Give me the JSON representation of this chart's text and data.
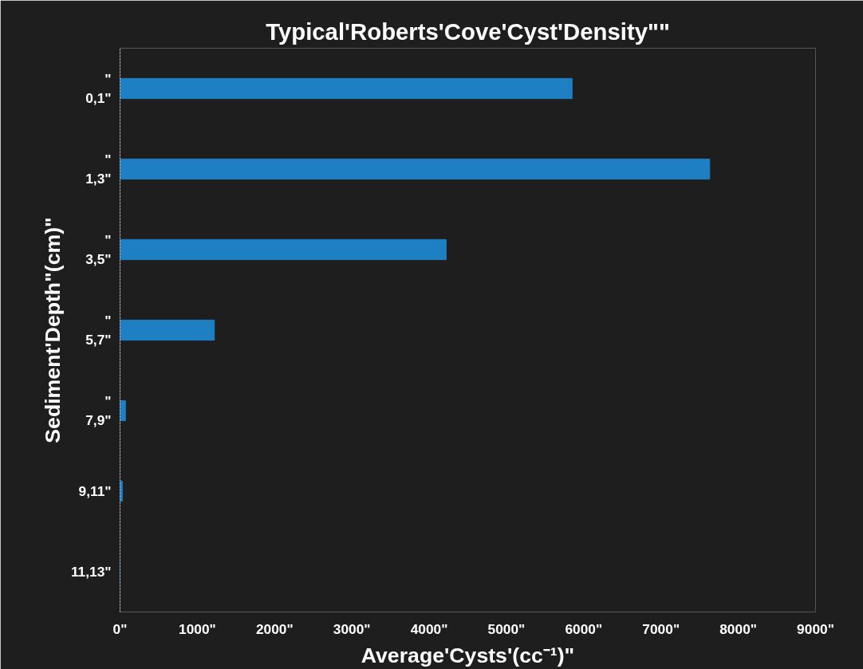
{
  "chart_data": {
    "type": "bar",
    "orientation": "horizontal",
    "title": "Typical'Roberts'Cove'Cyst'Density\"\"",
    "xlabel": "Average'Cysts'(cc⁻¹)\"",
    "ylabel": "Sediment'Depth\"(cm)\"",
    "categories": [
      "\"\n0,1\"",
      "\"\n1,3\"",
      "\"\n3,5\"",
      "\"\n5,7\"",
      "\"\n7,9\"",
      "9,11\"",
      "11,13\""
    ],
    "values": [
      5850,
      7630,
      4220,
      1220,
      70,
      30,
      0
    ],
    "color": "#1f7fc3",
    "xlim": [
      0,
      9000
    ],
    "xticks": [
      {
        "value": 0,
        "label": "0\""
      },
      {
        "value": 1000,
        "label": "1000\""
      },
      {
        "value": 2000,
        "label": "2000\""
      },
      {
        "value": 3000,
        "label": "3000\""
      },
      {
        "value": 4000,
        "label": "4000\""
      },
      {
        "value": 5000,
        "label": "5000\""
      },
      {
        "value": 6000,
        "label": "6000\""
      },
      {
        "value": 7000,
        "label": "7000\""
      },
      {
        "value": 8000,
        "label": "8000\""
      },
      {
        "value": 9000,
        "label": "9000\""
      }
    ],
    "grid": false
  }
}
